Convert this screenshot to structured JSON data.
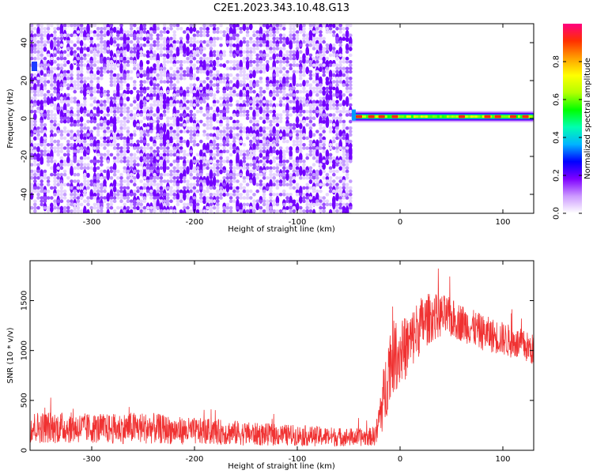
{
  "title": "C2E1.2023.343.10.48.G13",
  "chart_data": [
    {
      "type": "heatmap",
      "xlabel": "Height of straight line (km)",
      "ylabel": "Frequency (Hz)",
      "xlim": [
        -360,
        130
      ],
      "ylim": [
        -50,
        50
      ],
      "xticks": [
        -300,
        -200,
        -100,
        0,
        100
      ],
      "yticks": [
        -40,
        -20,
        0,
        20,
        40
      ],
      "noise_region_x": [
        -360,
        -47
      ],
      "signal_band": {
        "x": [
          -47,
          130
        ],
        "frequency": 1,
        "peak_x": [
          -40,
          -28,
          -18,
          -5,
          60,
          85,
          95,
          110,
          122
        ]
      },
      "colorbar": {
        "label": "Normalized spectral amplitude",
        "range": [
          0,
          1
        ],
        "ticks": [
          "0.0",
          "0.2",
          "0.4",
          "0.6",
          "0.8"
        ],
        "colors": [
          "#ffffff",
          "#cc99ff",
          "#7f00ff",
          "#0000ff",
          "#00b4ff",
          "#00ffb0",
          "#00ff00",
          "#b4ff00",
          "#ffff00",
          "#ffa000",
          "#ff3000",
          "#ff0080"
        ]
      },
      "grid": false
    },
    {
      "type": "line",
      "xlabel": "Height of straight line (km)",
      "ylabel": "SNR (10 * v/v)",
      "xlim": [
        -360,
        130
      ],
      "ylim": [
        0,
        1900
      ],
      "xticks": [
        -300,
        -200,
        -100,
        0,
        100
      ],
      "yticks": [
        0,
        500,
        1000,
        1500
      ],
      "color": "#f03232",
      "series": [
        {
          "x": [
            -360,
            -340,
            -320,
            -300,
            -280,
            -260,
            -240,
            -220,
            -200,
            -180,
            -160,
            -140,
            -120,
            -100,
            -80,
            -60,
            -40,
            -30,
            -25,
            -22,
            -20,
            -15,
            -10,
            -5,
            0,
            5,
            10,
            15,
            20,
            25,
            30,
            35,
            40,
            45,
            50,
            60,
            70,
            80,
            90,
            100,
            110,
            120,
            130
          ],
          "values": [
            230,
            230,
            225,
            220,
            215,
            225,
            220,
            200,
            190,
            185,
            175,
            160,
            155,
            150,
            140,
            135,
            130,
            135,
            145,
            200,
            350,
            560,
            900,
            950,
            980,
            1020,
            1080,
            1180,
            1250,
            1300,
            1330,
            1340,
            1350,
            1340,
            1320,
            1280,
            1230,
            1180,
            1150,
            1120,
            1080,
            1050,
            1000
          ],
          "spread": [
            160,
            160,
            155,
            150,
            150,
            160,
            155,
            140,
            135,
            130,
            125,
            115,
            110,
            105,
            100,
            95,
            90,
            90,
            100,
            150,
            220,
            350,
            380,
            360,
            340,
            320,
            310,
            300,
            290,
            270,
            250,
            230,
            220,
            210,
            200,
            190,
            185,
            180,
            175,
            170,
            165,
            160,
            160
          ]
        }
      ],
      "grid": false
    }
  ]
}
